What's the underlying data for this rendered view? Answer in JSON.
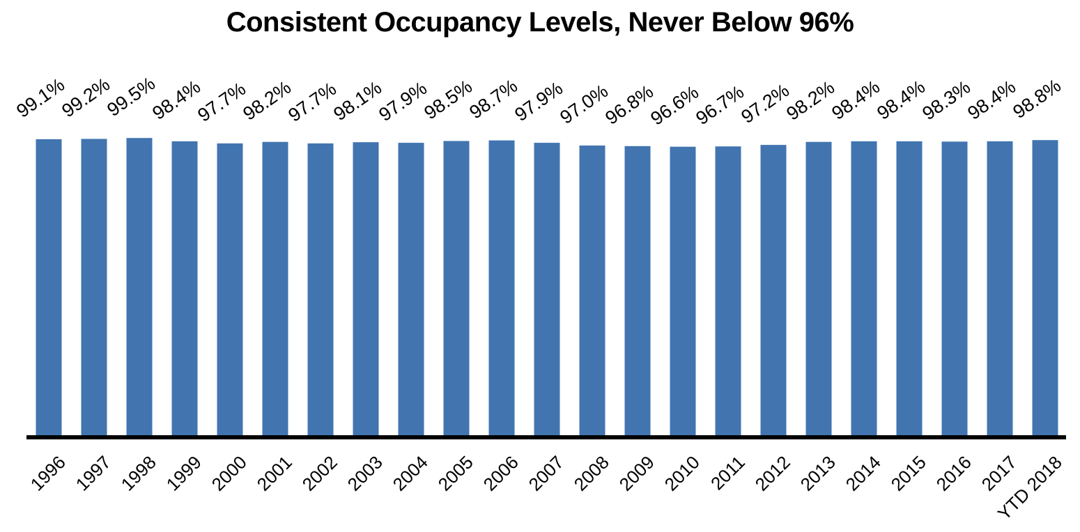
{
  "chart_data": {
    "type": "bar",
    "title": "Consistent Occupancy Levels, Never Below 96%",
    "xlabel": "",
    "ylabel": "",
    "ylim": [
      0,
      100
    ],
    "grid": false,
    "legend": "none",
    "categories": [
      "1996",
      "1997",
      "1998",
      "1999",
      "2000",
      "2001",
      "2002",
      "2003",
      "2004",
      "2005",
      "2006",
      "2007",
      "2008",
      "2009",
      "2010",
      "2011",
      "2012",
      "2013",
      "2014",
      "2015",
      "2016",
      "2017",
      "YTD 2018"
    ],
    "values": [
      99.1,
      99.2,
      99.5,
      98.4,
      97.7,
      98.2,
      97.7,
      98.1,
      97.9,
      98.5,
      98.7,
      97.9,
      97.0,
      96.8,
      96.6,
      96.7,
      97.2,
      98.2,
      98.4,
      98.4,
      98.3,
      98.4,
      98.8
    ],
    "data_labels": [
      "99.1%",
      "99.2%",
      "99.5%",
      "98.4%",
      "97.7%",
      "98.2%",
      "97.7%",
      "98.1%",
      "97.9%",
      "98.5%",
      "98.7%",
      "97.9%",
      "97.0%",
      "96.8%",
      "96.6%",
      "96.7%",
      "97.2%",
      "98.2%",
      "98.4%",
      "98.4%",
      "98.3%",
      "98.4%",
      "98.8%"
    ],
    "colors": {
      "bar": "#4275b0",
      "axis": "#000000",
      "text": "#000000"
    }
  }
}
